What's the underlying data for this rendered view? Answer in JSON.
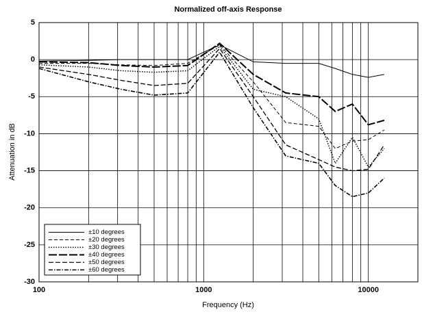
{
  "chart_data": {
    "type": "line",
    "title": "Normalized off-axis Response",
    "x_label": "Frequency (Hz)",
    "y_label": "Attenuation in dB",
    "log_x": true,
    "grid": true,
    "legend_position": "lower left",
    "xlim": [
      100,
      20000
    ],
    "xticks": [
      100,
      1000,
      10000
    ],
    "xminor_ticks": [
      200,
      300,
      400,
      500,
      600,
      700,
      800,
      900,
      2000,
      3000,
      4000,
      5000,
      6000,
      7000,
      8000,
      9000
    ],
    "ylim": [
      -30,
      5
    ],
    "yticks": [
      5,
      0,
      -5,
      -10,
      -15,
      -20,
      -25,
      -30
    ],
    "x": [
      100,
      200,
      315,
      500,
      800,
      1250,
      2000,
      3150,
      5000,
      6300,
      8000,
      10000,
      12500
    ],
    "series": [
      {
        "name": "±10 degrees",
        "color": "#000000",
        "values": [
          -0.2,
          -0.1,
          0,
          0,
          0,
          2,
          -0.3,
          -0.5,
          -0.5,
          -1.2,
          -2,
          -2.4,
          -2
        ]
      },
      {
        "name": "±20 degrees",
        "color": "#000000",
        "values": [
          -0.5,
          -0.5,
          -0.7,
          -0.8,
          -0.5,
          2,
          -3,
          -8.5,
          -9,
          -12,
          -11,
          -10.8,
          -9.5
        ]
      },
      {
        "name": "±30 degrees",
        "color": "#000000",
        "values": [
          -0.7,
          -1,
          -1.5,
          -1.7,
          -1.5,
          1.8,
          -4,
          -5,
          -8,
          -14,
          -10.5,
          -14.5,
          -12
        ]
      },
      {
        "name": "±40 degrees",
        "color": "#000000",
        "values": [
          -0.3,
          -0.4,
          -0.8,
          -1,
          -0.8,
          2.2,
          -2,
          -4.5,
          -5,
          -7,
          -6,
          -8.8,
          -8.2
        ]
      },
      {
        "name": "±50 degrees",
        "color": "#000000",
        "values": [
          -1,
          -2,
          -2.8,
          -3.5,
          -3.2,
          1.5,
          -5,
          -11.5,
          -13.5,
          -14.5,
          -15,
          -14.8,
          -11.5
        ]
      },
      {
        "name": "±60 degrees",
        "color": "#000000",
        "values": [
          -1.2,
          -3,
          -4,
          -4.8,
          -4.5,
          1,
          -6.5,
          -13,
          -14,
          -17,
          -18.5,
          -18,
          -16
        ]
      }
    ]
  }
}
